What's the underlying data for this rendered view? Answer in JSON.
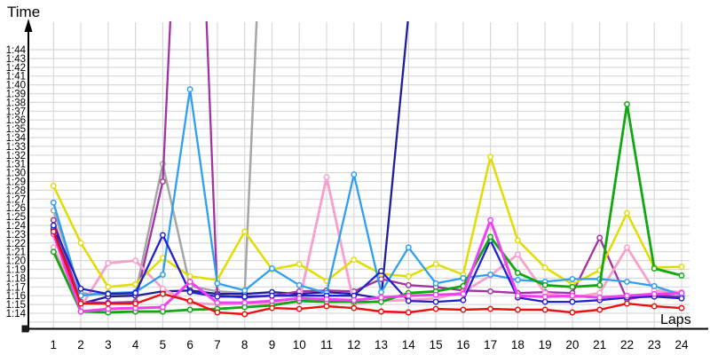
{
  "labels": {
    "time_axis": "Time",
    "laps_axis": "Laps"
  },
  "chart_data": {
    "type": "line",
    "title": "",
    "xlabel": "Laps",
    "ylabel": "Time",
    "legend": "none",
    "grid": true,
    "x_ticks": [
      "1",
      "2",
      "3",
      "4",
      "5",
      "6",
      "7",
      "8",
      "9",
      "10",
      "11",
      "12",
      "13",
      "14",
      "15",
      "16",
      "17",
      "18",
      "19",
      "20",
      "21",
      "22",
      "23",
      "24"
    ],
    "y_ticks": [
      "1:44",
      "1:43",
      "1:42",
      "1:41",
      "1:40",
      "1:39",
      "1:38",
      "1:37",
      "1:36",
      "1:35",
      "1:34",
      "1:33",
      "1:32",
      "1:31",
      "1:30",
      "1:29",
      "1:28",
      "1:27",
      "1:26",
      "1:25",
      "1:24",
      "1:23",
      "1:22",
      "1:21",
      "1:20",
      "1:19",
      "1:18",
      "1:17",
      "1:16",
      "1:15",
      "1:14"
    ],
    "y_axis_seconds_range": [
      74,
      104
    ],
    "value_unit": "lap time in seconds; null = no lap recorded (retired); values above 105 rise off the top of the scale",
    "series": [
      {
        "name": "gray",
        "color": "#A6A6A6",
        "values": [
          85.7,
          76.3,
          76.1,
          76.2,
          91,
          77.1,
          76.5,
          76.3,
          147,
          null,
          null,
          null,
          null,
          null,
          null,
          null,
          null,
          null,
          null,
          null,
          null,
          null,
          null,
          null
        ]
      },
      {
        "name": "navy",
        "color": "#1F1F9C",
        "values": [
          83.6,
          75.1,
          75.9,
          76,
          76.5,
          76.6,
          76.2,
          76.2,
          76.4,
          76.2,
          76.4,
          76.2,
          75.7,
          108,
          null,
          null,
          null,
          null,
          null,
          null,
          null,
          null,
          null,
          null
        ]
      },
      {
        "name": "purple",
        "color": "#A233A2",
        "values": [
          84.6,
          75.3,
          75.2,
          75.3,
          89,
          155,
          76,
          75.8,
          76,
          76.5,
          76.6,
          76.5,
          77.9,
          77.2,
          77,
          76.6,
          76.5,
          76.3,
          76.4,
          76.3,
          82.6,
          75.6,
          76.1,
          75.9
        ]
      },
      {
        "name": "pink",
        "color": "#FA9FCB",
        "values": [
          81.5,
          74.7,
          79.7,
          80,
          76.8,
          75.2,
          75,
          75.1,
          75.1,
          75.3,
          89.5,
          75.1,
          75.4,
          75.5,
          75.7,
          76.4,
          78.3,
          80.7,
          76.3,
          75.8,
          76.3,
          81.5,
          76.6,
          76.4
        ]
      },
      {
        "name": "yellow",
        "color": "#E2DD00",
        "values": [
          88.5,
          82,
          77,
          77.3,
          80.3,
          78.2,
          77.8,
          83.3,
          79,
          79.6,
          77.7,
          80.1,
          78.5,
          78.2,
          79.6,
          78.4,
          91.8,
          82.3,
          79.2,
          77.3,
          78.9,
          85.4,
          79.2,
          79.3
        ]
      },
      {
        "name": "cyan",
        "color": "#2E9FF2",
        "values": [
          86.6,
          76,
          76.3,
          76.4,
          78.4,
          99.5,
          77.4,
          76.6,
          79.1,
          77.2,
          76.3,
          89.8,
          76.4,
          81.5,
          77.4,
          78,
          78.4,
          77.8,
          77.6,
          77.9,
          77.9,
          77.6,
          77.1,
          76.1
        ]
      },
      {
        "name": "blue",
        "color": "#2222CC",
        "values": [
          84,
          76.8,
          76.2,
          76.3,
          82.9,
          76.4,
          75.9,
          75.9,
          76,
          76,
          76,
          76,
          78.8,
          75.4,
          75.3,
          75.5,
          82.3,
          75.8,
          75.3,
          75.3,
          75.5,
          75.8,
          75.9,
          75.7
        ]
      },
      {
        "name": "green",
        "color": "#10A810",
        "values": [
          81,
          74.2,
          74.1,
          74.2,
          74.2,
          74.4,
          74.5,
          74.7,
          74.9,
          75.4,
          75.3,
          75.3,
          75.3,
          76.3,
          76.5,
          77.1,
          82.7,
          78.6,
          77.2,
          77,
          77.2,
          97.8,
          79.1,
          78.3
        ]
      },
      {
        "name": "magenta",
        "color": "#F23FF2",
        "values": [
          83,
          74.2,
          74.5,
          74.6,
          74.7,
          77.6,
          75.2,
          75.2,
          75.4,
          75.7,
          75.6,
          75.5,
          75.8,
          76,
          76.1,
          76.2,
          84.6,
          76,
          75.9,
          76,
          75.8,
          76,
          76.2,
          76.3
        ]
      },
      {
        "name": "red",
        "color": "#EE0F0F",
        "values": [
          83.3,
          75.1,
          75.1,
          75.1,
          76.2,
          75.4,
          74.1,
          73.9,
          74.6,
          74.5,
          74.8,
          74.6,
          74.2,
          74.1,
          74.5,
          74.4,
          74.5,
          74.4,
          74.4,
          74.1,
          74.4,
          75.1,
          74.8,
          74.6
        ]
      }
    ]
  }
}
